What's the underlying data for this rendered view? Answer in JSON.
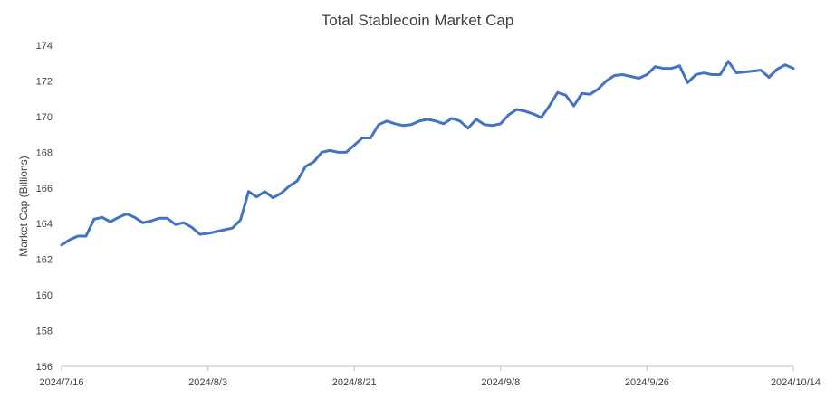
{
  "chart_data": {
    "type": "line",
    "title": "Total Stablecoin Market Cap",
    "xlabel": "",
    "ylabel": "Market Cap (Billions)",
    "ylim": [
      156,
      174
    ],
    "yticks": [
      156,
      158,
      160,
      162,
      164,
      166,
      168,
      170,
      172,
      174
    ],
    "xlim": [
      "2024/7/16",
      "2024/10/14"
    ],
    "xticks": [
      "2024/7/16",
      "2024/8/3",
      "2024/8/21",
      "2024/9/8",
      "2024/9/26",
      "2024/10/14"
    ],
    "grid": false,
    "colors": {
      "line": "#4472C4",
      "axis": "#bfbfbf",
      "text": "#404040"
    },
    "series": [
      {
        "x": [
          "2024/7/16",
          "2024/7/17",
          "2024/7/18",
          "2024/7/19",
          "2024/7/20",
          "2024/7/21",
          "2024/7/22",
          "2024/7/23",
          "2024/7/24",
          "2024/7/25",
          "2024/7/26",
          "2024/7/27",
          "2024/7/28",
          "2024/7/29",
          "2024/7/30",
          "2024/7/31",
          "2024/8/1",
          "2024/8/2",
          "2024/8/3",
          "2024/8/4",
          "2024/8/5",
          "2024/8/6",
          "2024/8/7",
          "2024/8/8",
          "2024/8/9",
          "2024/8/10",
          "2024/8/11",
          "2024/8/12",
          "2024/8/13",
          "2024/8/14",
          "2024/8/15",
          "2024/8/16",
          "2024/8/17",
          "2024/8/18",
          "2024/8/19",
          "2024/8/20",
          "2024/8/21",
          "2024/8/22",
          "2024/8/23",
          "2024/8/24",
          "2024/8/25",
          "2024/8/26",
          "2024/8/27",
          "2024/8/28",
          "2024/8/29",
          "2024/8/30",
          "2024/8/31",
          "2024/9/1",
          "2024/9/2",
          "2024/9/3",
          "2024/9/4",
          "2024/9/5",
          "2024/9/6",
          "2024/9/7",
          "2024/9/8",
          "2024/9/9",
          "2024/9/10",
          "2024/9/11",
          "2024/9/12",
          "2024/9/13",
          "2024/9/14",
          "2024/9/15",
          "2024/9/16",
          "2024/9/17",
          "2024/9/18",
          "2024/9/19",
          "2024/9/20",
          "2024/9/21",
          "2024/9/22",
          "2024/9/23",
          "2024/9/24",
          "2024/9/25",
          "2024/9/26",
          "2024/9/27",
          "2024/9/28",
          "2024/9/29",
          "2024/9/30",
          "2024/10/1",
          "2024/10/2",
          "2024/10/3",
          "2024/10/4",
          "2024/10/5",
          "2024/10/6",
          "2024/10/7",
          "2024/10/8",
          "2024/10/9",
          "2024/10/10",
          "2024/10/11",
          "2024/10/12",
          "2024/10/13",
          "2024/10/14"
        ],
        "values": [
          162.8,
          163.1,
          163.3,
          163.3,
          164.25,
          164.35,
          164.1,
          164.35,
          164.55,
          164.35,
          164.05,
          164.15,
          164.3,
          164.3,
          163.95,
          164.05,
          163.8,
          163.4,
          163.45,
          163.55,
          163.65,
          163.75,
          164.2,
          165.8,
          165.5,
          165.8,
          165.45,
          165.7,
          166.1,
          166.4,
          167.2,
          167.45,
          168.0,
          168.1,
          168.0,
          168.0,
          168.4,
          168.8,
          168.8,
          169.55,
          169.75,
          169.6,
          169.5,
          169.55,
          169.75,
          169.85,
          169.75,
          169.6,
          169.9,
          169.75,
          169.35,
          169.85,
          169.55,
          169.5,
          169.6,
          170.1,
          170.4,
          170.3,
          170.15,
          169.95,
          170.6,
          171.35,
          171.2,
          170.6,
          171.3,
          171.25,
          171.55,
          172.0,
          172.3,
          172.35,
          172.25,
          172.15,
          172.35,
          172.8,
          172.7,
          172.7,
          172.85,
          171.9,
          172.35,
          172.45,
          172.35,
          172.35,
          173.1,
          172.45,
          172.5,
          172.55,
          172.6,
          172.2,
          172.65,
          172.9,
          172.7
        ]
      }
    ]
  }
}
